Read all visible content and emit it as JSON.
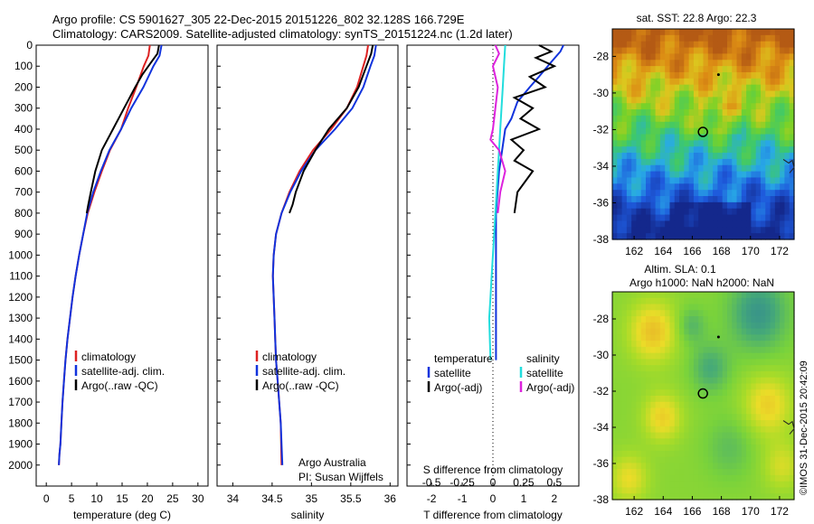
{
  "header": {
    "line1": "Argo profile: CS 5901627_305 22-Dec-2015 20151226_802 32.128S 166.729E",
    "line2": "Climatology: CARS2009. Satellite-adjusted climatology: synTS_20151224.nc (1.2d later)"
  },
  "colors": {
    "climatology": "#dd2222",
    "satellite_t": "#1133dd",
    "argo": "#000000",
    "satellite_s": "#22dddd",
    "argo_s_adj": "#dd22dd"
  },
  "chart_data": [
    {
      "type": "line",
      "name": "temperature-panel",
      "xlabel": "temperature (deg C)",
      "ylabel": "",
      "xlim": [
        -2,
        32
      ],
      "ylim": [
        2100,
        0
      ],
      "xticks": [
        0,
        5,
        10,
        15,
        20,
        25,
        30
      ],
      "yticks": [
        0,
        100,
        200,
        300,
        400,
        500,
        600,
        700,
        800,
        900,
        1000,
        1100,
        1200,
        1300,
        1400,
        1500,
        1600,
        1700,
        1800,
        1900,
        2000
      ],
      "legend": [
        "climatology",
        "satellite-adj. clim.",
        "Argo(..raw -QC)"
      ],
      "series": [
        {
          "name": "climatology",
          "color": "#dd2222",
          "x": [
            20.5,
            20.2,
            19.3,
            17.8,
            16.2,
            14.8,
            12.6,
            11.0,
            9.5,
            8.2,
            7.3,
            6.5,
            5.8,
            5.2,
            4.7,
            4.2,
            3.8,
            3.5,
            3.2,
            3.0,
            2.8,
            2.6,
            2.5
          ],
          "y": [
            0,
            50,
            100,
            200,
            300,
            400,
            500,
            600,
            700,
            800,
            900,
            1000,
            1100,
            1200,
            1300,
            1400,
            1500,
            1600,
            1700,
            1800,
            1900,
            1950,
            2000
          ]
        },
        {
          "name": "satellite-adj. clim.",
          "color": "#1133dd",
          "x": [
            22.8,
            22.4,
            21.2,
            19.2,
            16.8,
            14.8,
            12.5,
            10.8,
            9.3,
            8.1,
            7.3,
            6.5,
            5.8,
            5.2,
            4.7,
            4.2,
            3.8,
            3.5,
            3.2,
            3.0,
            2.8,
            2.6,
            2.5
          ],
          "y": [
            0,
            50,
            100,
            200,
            300,
            400,
            500,
            600,
            700,
            800,
            900,
            1000,
            1100,
            1200,
            1300,
            1400,
            1500,
            1600,
            1700,
            1800,
            1900,
            1950,
            2000
          ]
        },
        {
          "name": "Argo(..raw -QC)",
          "color": "#000000",
          "x": [
            22.3,
            22.0,
            20.8,
            19.0,
            17.6,
            15.4,
            13.2,
            11.0,
            9.7,
            8.8,
            8.3,
            8.0
          ],
          "y": [
            0,
            40,
            80,
            140,
            200,
            300,
            400,
            500,
            600,
            700,
            760,
            800
          ]
        }
      ]
    },
    {
      "type": "line",
      "name": "salinity-panel",
      "xlabel": "salinity",
      "ylabel": "",
      "xlim": [
        33.8,
        36.1
      ],
      "ylim": [
        2100,
        0
      ],
      "xticks": [
        34,
        34.5,
        35,
        35.5,
        36
      ],
      "legend": [
        "climatology",
        "satellite-adj. clim.",
        "Argo(..raw -QC)"
      ],
      "series": [
        {
          "name": "climatology",
          "color": "#dd2222",
          "x": [
            35.72,
            35.7,
            35.66,
            35.58,
            35.45,
            35.25,
            35.02,
            34.85,
            34.72,
            34.62,
            34.55,
            34.52,
            34.51,
            34.52,
            34.53,
            34.54,
            34.55,
            34.57,
            34.59,
            34.61,
            34.62
          ],
          "y": [
            0,
            50,
            100,
            200,
            300,
            400,
            500,
            600,
            700,
            800,
            900,
            1000,
            1100,
            1200,
            1300,
            1400,
            1500,
            1600,
            1700,
            1800,
            2000
          ]
        },
        {
          "name": "satellite-adj. clim.",
          "color": "#1133dd",
          "x": [
            35.82,
            35.8,
            35.75,
            35.66,
            35.52,
            35.3,
            35.05,
            34.87,
            34.73,
            34.62,
            34.55,
            34.52,
            34.51,
            34.52,
            34.53,
            34.54,
            34.55,
            34.57,
            34.59,
            34.61,
            34.63
          ],
          "y": [
            0,
            50,
            100,
            200,
            300,
            400,
            500,
            600,
            700,
            800,
            900,
            1000,
            1100,
            1200,
            1300,
            1400,
            1500,
            1600,
            1700,
            1800,
            2000
          ]
        },
        {
          "name": "Argo(..raw -QC)",
          "color": "#000000",
          "x": [
            35.78,
            35.76,
            35.7,
            35.6,
            35.45,
            35.22,
            35.05,
            34.9,
            34.8,
            34.76,
            34.72
          ],
          "y": [
            0,
            40,
            100,
            200,
            300,
            400,
            500,
            600,
            700,
            760,
            800
          ]
        }
      ],
      "annotation": [
        "Argo Australia",
        "PI: Susan Wijffels"
      ]
    },
    {
      "type": "line",
      "name": "difference-panel",
      "xlabel": "T difference from climatology",
      "x2label": "S difference from climatology",
      "xlim": [
        -2.8,
        2.8
      ],
      "x2lim": [
        -0.7,
        0.7
      ],
      "ylim": [
        2100,
        0
      ],
      "xticks": [
        -2,
        -1,
        0,
        1,
        2
      ],
      "x2ticks": [
        -0.5,
        -0.25,
        0,
        0.25,
        0.5
      ],
      "x2ticklabels": [
        "-0.5",
        "-0.25",
        "0",
        "0.25",
        "0.5"
      ],
      "legend_headers": [
        "temperature",
        "salinity"
      ],
      "legend": [
        "satellite",
        "Argo(-adj)",
        "satellite",
        "Argo(-adj)"
      ],
      "series": [
        {
          "name": "satellite",
          "axis": "T",
          "color": "#1133dd",
          "x": [
            2.3,
            2.2,
            1.9,
            1.5,
            1.2,
            0.8,
            0.6,
            0.4,
            0.3,
            0.2,
            0.15,
            0.1,
            0.1,
            0.1,
            0.1,
            0.1,
            0.1,
            0.1
          ],
          "y": [
            0,
            30,
            80,
            150,
            200,
            270,
            350,
            400,
            500,
            600,
            700,
            800,
            900,
            1000,
            1100,
            1200,
            1300,
            1500
          ]
        },
        {
          "name": "Argo(-adj)",
          "axis": "T",
          "color": "#000000",
          "x": [
            1.5,
            1.9,
            1.4,
            2.0,
            1.2,
            1.7,
            0.7,
            1.3,
            0.9,
            1.5,
            0.6,
            1.0,
            0.7,
            1.3,
            0.8,
            0.7
          ],
          "y": [
            0,
            30,
            60,
            100,
            150,
            200,
            250,
            300,
            350,
            400,
            450,
            500,
            550,
            600,
            700,
            800
          ]
        },
        {
          "name": "satellite",
          "axis": "S",
          "color": "#22dddd",
          "x": [
            0.1,
            0.09,
            0.08,
            0.07,
            0.06,
            0.05,
            0.04,
            0.03,
            0.02,
            0.01,
            0.0,
            -0.01,
            -0.02,
            -0.03,
            -0.02
          ],
          "y": [
            0,
            100,
            200,
            300,
            400,
            500,
            600,
            700,
            800,
            900,
            1000,
            1100,
            1200,
            1300,
            1500
          ]
        },
        {
          "name": "Argo(-adj)",
          "axis": "S",
          "color": "#dd22dd",
          "x": [
            0.02,
            0.05,
            0.0,
            0.04,
            0.02,
            0.0,
            -0.02,
            0.05,
            0.1,
            0.06,
            0.04
          ],
          "y": [
            0,
            40,
            100,
            200,
            300,
            400,
            450,
            500,
            600,
            700,
            800
          ]
        }
      ]
    },
    {
      "type": "heatmap",
      "name": "sst-map",
      "title": "sat. SST: 22.8 Argo: 22.3",
      "xlim": [
        160.5,
        173
      ],
      "ylim": [
        -38,
        -26.5
      ],
      "xticks": [
        162,
        164,
        166,
        168,
        170,
        172
      ],
      "yticks": [
        -28,
        -30,
        -32,
        -34,
        -36,
        -38
      ],
      "marker": {
        "lon": 166.729,
        "lat": -32.128
      }
    },
    {
      "type": "heatmap",
      "name": "sla-map",
      "title": "Altim. SLA: 0.1",
      "subtitle": "Argo h1000: NaN h2000: NaN",
      "xlim": [
        160.5,
        173
      ],
      "ylim": [
        -38,
        -26.5
      ],
      "xticks": [
        162,
        164,
        166,
        168,
        170,
        172
      ],
      "yticks": [
        -28,
        -30,
        -32,
        -34,
        -36,
        -38
      ],
      "marker": {
        "lon": 166.729,
        "lat": -32.128
      }
    }
  ],
  "footer": {
    "timestamp": "©IMOS 31-Dec-2015 20:42:09"
  }
}
